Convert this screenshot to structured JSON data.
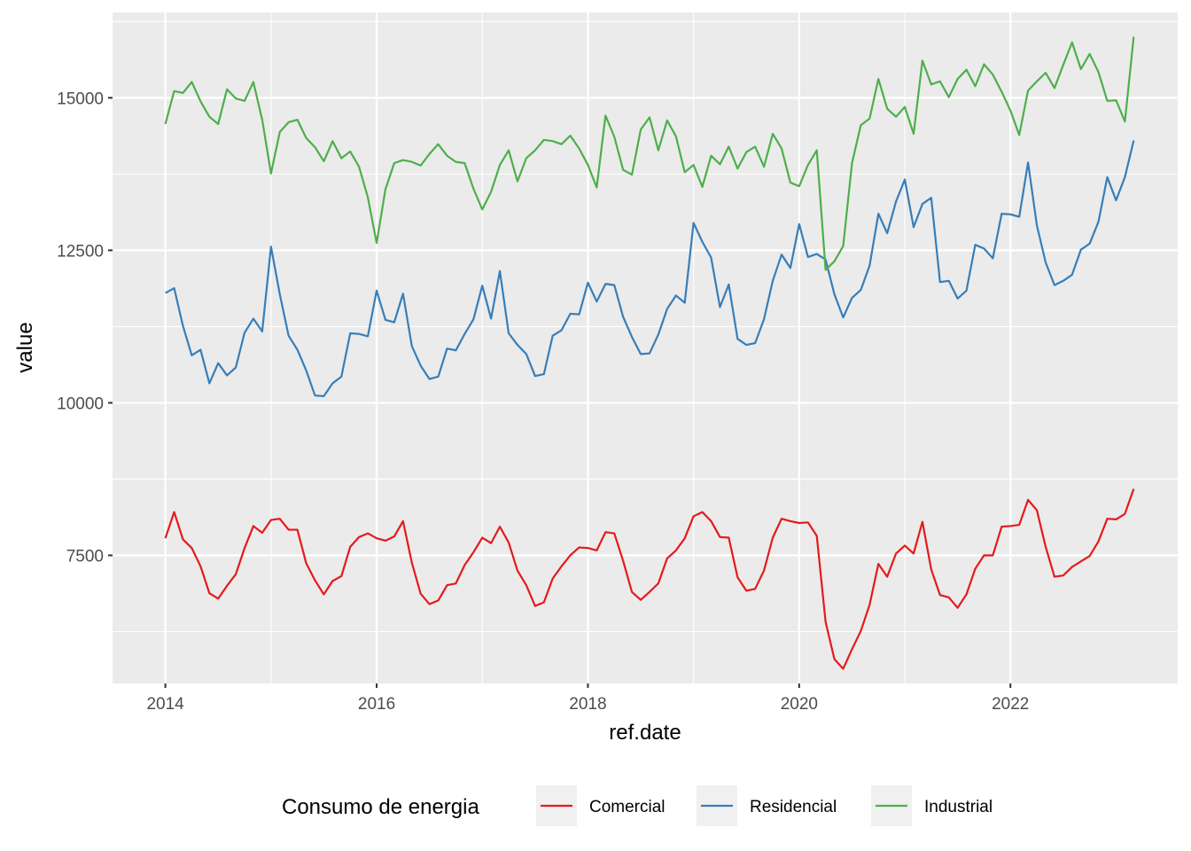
{
  "chart_data": {
    "type": "line",
    "xlabel": "ref.date",
    "ylabel": "value",
    "x_start": "2014-01",
    "x_step": "month",
    "xlim": [
      "2013-07",
      "2023-08"
    ],
    "ylim": [
      5400,
      16400
    ],
    "x_ticks": [
      {
        "value": "2014-01",
        "label": "2014"
      },
      {
        "value": "2016-01",
        "label": "2016"
      },
      {
        "value": "2018-01",
        "label": "2018"
      },
      {
        "value": "2020-01",
        "label": "2020"
      },
      {
        "value": "2022-01",
        "label": "2022"
      }
    ],
    "y_ticks": [
      7500,
      10000,
      12500,
      15000
    ],
    "grid": true,
    "legend": {
      "title": "Consumo de energia",
      "position": "bottom"
    },
    "series": [
      {
        "name": "Comercial",
        "color": "#e41a1c",
        "values": [
          7780,
          8210,
          7760,
          7620,
          7320,
          6880,
          6790,
          7000,
          7190,
          7620,
          7980,
          7870,
          8080,
          8100,
          7920,
          7920,
          7370,
          7090,
          6860,
          7080,
          7160,
          7640,
          7800,
          7860,
          7780,
          7740,
          7810,
          8060,
          7380,
          6870,
          6700,
          6760,
          7010,
          7040,
          7340,
          7550,
          7790,
          7700,
          7970,
          7710,
          7250,
          7010,
          6670,
          6730,
          7120,
          7320,
          7500,
          7630,
          7620,
          7580,
          7880,
          7860,
          7410,
          6900,
          6770,
          6900,
          7040,
          7450,
          7580,
          7780,
          8140,
          8210,
          8060,
          7800,
          7790,
          7140,
          6920,
          6950,
          7250,
          7790,
          8100,
          8060,
          8030,
          8040,
          7820,
          6410,
          5800,
          5640,
          5960,
          6260,
          6690,
          7360,
          7150,
          7530,
          7660,
          7530,
          8050,
          7270,
          6850,
          6810,
          6640,
          6860,
          7280,
          7500,
          7500,
          7970,
          7980,
          8000,
          8410,
          8240,
          7640,
          7150,
          7170,
          7310,
          7400,
          7490,
          7730,
          8100,
          8090,
          8180,
          8590
        ]
      },
      {
        "name": "Residencial",
        "color": "#377eb8",
        "values": [
          11800,
          11880,
          11260,
          10780,
          10870,
          10320,
          10650,
          10450,
          10580,
          11150,
          11380,
          11170,
          12560,
          11780,
          11100,
          10870,
          10530,
          10120,
          10110,
          10320,
          10430,
          11140,
          11130,
          11090,
          11840,
          11360,
          11320,
          11790,
          10930,
          10610,
          10390,
          10430,
          10890,
          10860,
          11130,
          11370,
          11920,
          11380,
          12160,
          11140,
          10950,
          10800,
          10440,
          10470,
          11100,
          11190,
          11460,
          11450,
          11970,
          11660,
          11950,
          11930,
          11410,
          11080,
          10800,
          10810,
          11120,
          11540,
          11760,
          11640,
          12950,
          12640,
          12380,
          11570,
          11940,
          11050,
          10950,
          10980,
          11370,
          12000,
          12430,
          12210,
          12930,
          12390,
          12440,
          12350,
          11780,
          11400,
          11720,
          11850,
          12250,
          13100,
          12780,
          13300,
          13660,
          12880,
          13260,
          13360,
          11980,
          12000,
          11710,
          11840,
          12590,
          12530,
          12370,
          13100,
          13090,
          13050,
          13940,
          12910,
          12300,
          11930,
          12000,
          12100,
          12510,
          12610,
          12970,
          13700,
          13320,
          13700,
          14300
        ]
      },
      {
        "name": "Industrial",
        "color": "#4daf4a",
        "values": [
          14570,
          15110,
          15080,
          15260,
          14940,
          14690,
          14570,
          15140,
          14990,
          14950,
          15260,
          14640,
          13760,
          14440,
          14600,
          14640,
          14340,
          14190,
          13960,
          14290,
          14010,
          14120,
          13870,
          13370,
          12620,
          13500,
          13930,
          13980,
          13950,
          13890,
          14080,
          14240,
          14050,
          13950,
          13930,
          13510,
          13170,
          13460,
          13900,
          14140,
          13630,
          14010,
          14140,
          14310,
          14290,
          14240,
          14380,
          14170,
          13900,
          13530,
          14710,
          14360,
          13820,
          13740,
          14480,
          14680,
          14140,
          14630,
          14370,
          13780,
          13900,
          13540,
          14050,
          13910,
          14200,
          13840,
          14110,
          14200,
          13870,
          14410,
          14170,
          13610,
          13550,
          13900,
          14140,
          12180,
          12320,
          12570,
          13930,
          14550,
          14660,
          15310,
          14820,
          14690,
          14850,
          14410,
          15610,
          15220,
          15270,
          15010,
          15310,
          15460,
          15190,
          15550,
          15380,
          15100,
          14790,
          14390,
          15120,
          15270,
          15410,
          15160,
          15540,
          15910,
          15470,
          15720,
          15420,
          14950,
          14960,
          14610,
          16000
        ]
      }
    ]
  }
}
